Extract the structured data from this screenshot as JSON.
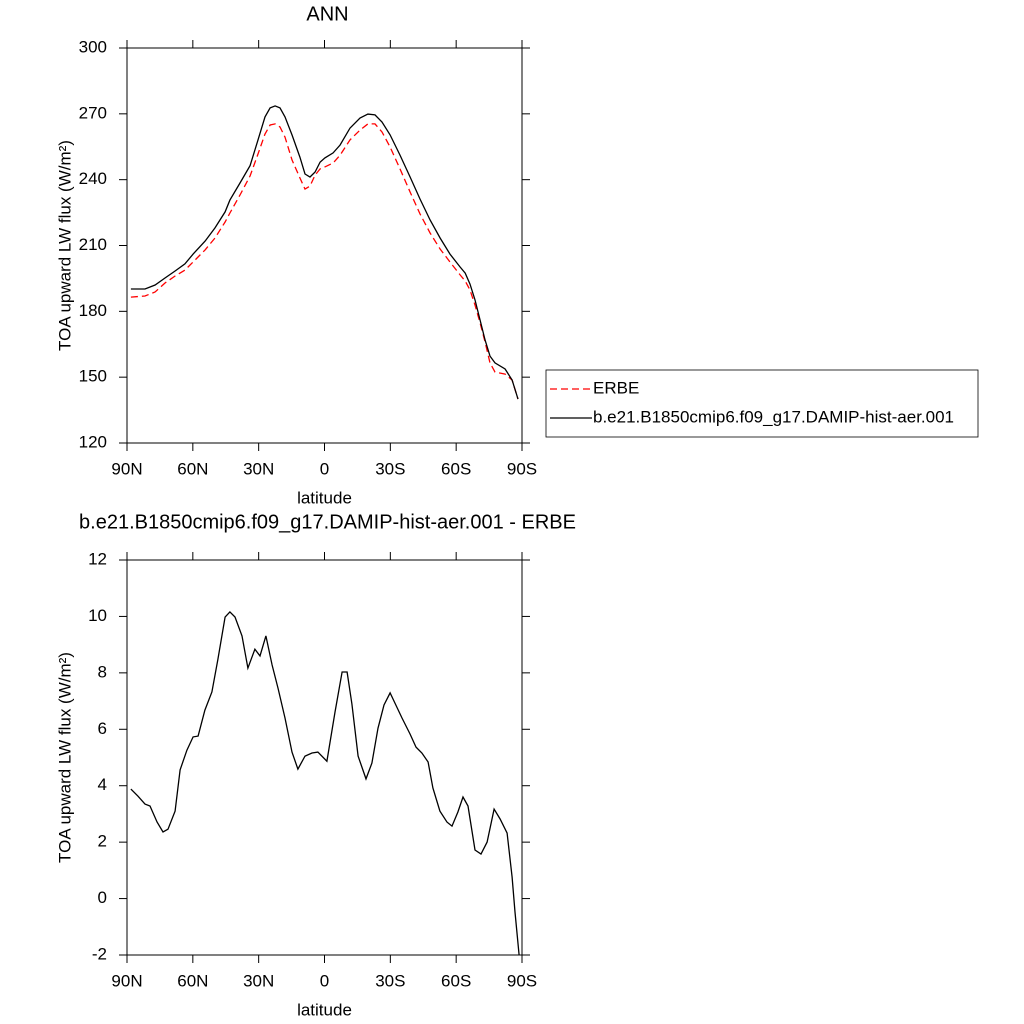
{
  "chart_data": [
    {
      "type": "line",
      "title": "ANN",
      "xlabel": "latitude",
      "ylabel": "TOA upward LW flux (W/m²)",
      "xlim": [
        90,
        -90
      ],
      "xticks": [
        {
          "value": 90,
          "label": "90N"
        },
        {
          "value": 60,
          "label": "60N"
        },
        {
          "value": 30,
          "label": "30N"
        },
        0,
        {
          "value": -30,
          "label": "30S"
        },
        {
          "value": -60,
          "label": "60S"
        },
        {
          "value": -90,
          "label": "90S"
        }
      ],
      "ylim": [
        120,
        300
      ],
      "yticks": [
        120,
        150,
        180,
        210,
        240,
        270,
        300
      ],
      "x": [
        88.2,
        81.8,
        77.2,
        72.7,
        68.1,
        63.6,
        59.9,
        54.4,
        49.9,
        45.3,
        43.1,
        38.5,
        33.9,
        30.3,
        27.1,
        24.8,
        22.5,
        20.3,
        18.0,
        14.8,
        11.2,
        8.9,
        6.6,
        4.3,
        2.0,
        -0.2,
        -3.9,
        -7.1,
        -11.6,
        -16.2,
        -19.8,
        -23.0,
        -26.2,
        -29.9,
        -34.4,
        -39.0,
        -43.5,
        -48.1,
        -52.7,
        -57.2,
        -61.8,
        -64.1,
        -66.3,
        -68.6,
        -70.9,
        -73.2,
        -75.4,
        -77.7,
        -82.3,
        -85.5,
        -88.2
      ],
      "series": [
        {
          "name": "ERBE",
          "color": "#ff0000",
          "dash": true,
          "values": [
            186.5,
            187.0,
            188.8,
            192.9,
            196.1,
            198.8,
            202.5,
            208.0,
            213.4,
            220.7,
            224.8,
            233.0,
            241.7,
            251.7,
            260.8,
            264.9,
            265.4,
            264.0,
            259.4,
            249.0,
            240.8,
            235.7,
            237.1,
            242.1,
            244.9,
            245.8,
            247.6,
            251.2,
            258.1,
            262.6,
            265.4,
            265.4,
            261.7,
            254.9,
            244.9,
            234.4,
            224.4,
            215.7,
            208.4,
            202.5,
            196.6,
            193.8,
            189.7,
            182.9,
            174.7,
            166.0,
            156.5,
            152.3,
            151.4,
            148.7,
            140.0
          ]
        },
        {
          "name": "b.e21.B1850cmip6.f09_g17.DAMIP-hist-aer.001",
          "color": "#000000",
          "dash": false,
          "values": [
            190.2,
            190.2,
            192.0,
            195.2,
            198.4,
            201.6,
            206.1,
            212.0,
            218.0,
            225.3,
            230.7,
            238.5,
            246.4,
            258.1,
            268.6,
            272.7,
            273.6,
            272.7,
            268.6,
            260.4,
            250.3,
            242.6,
            241.2,
            243.5,
            248.0,
            249.9,
            252.2,
            255.8,
            263.5,
            268.1,
            269.9,
            269.5,
            266.3,
            260.4,
            251.2,
            241.2,
            231.2,
            221.6,
            213.4,
            206.1,
            200.2,
            197.4,
            192.4,
            185.2,
            176.0,
            166.9,
            159.6,
            156.5,
            153.7,
            148.7,
            140.0
          ]
        }
      ]
    },
    {
      "type": "line",
      "title": "b.e21.B1850cmip6.f09_g17.DAMIP-hist-aer.001 - ERBE",
      "xlabel": "latitude",
      "ylabel": "TOA upward LW flux (W/m²)",
      "xlim": [
        90,
        -90
      ],
      "xticks": [
        {
          "value": 90,
          "label": "90N"
        },
        {
          "value": 60,
          "label": "60N"
        },
        {
          "value": 30,
          "label": "30N"
        },
        0,
        {
          "value": -30,
          "label": "30S"
        },
        {
          "value": -60,
          "label": "60S"
        },
        {
          "value": -90,
          "label": "90S"
        }
      ],
      "ylim": [
        -2,
        12
      ],
      "yticks": [
        -2,
        0,
        2,
        4,
        6,
        8,
        10,
        12
      ],
      "x": [
        88.2,
        85.0,
        81.8,
        79.5,
        76.3,
        73.6,
        71.3,
        68.1,
        65.8,
        62.7,
        59.9,
        57.6,
        54.5,
        51.3,
        48.6,
        45.3,
        43.1,
        40.8,
        37.6,
        34.9,
        31.7,
        29.4,
        26.7,
        23.9,
        21.2,
        18.0,
        14.8,
        12.1,
        8.9,
        5.7,
        3.0,
        -1.1,
        -4.8,
        -8.0,
        -10.3,
        -12.5,
        -15.3,
        -18.9,
        -21.6,
        -24.4,
        -27.1,
        -29.9,
        -32.1,
        -35.3,
        -39.0,
        -41.7,
        -44.4,
        -47.2,
        -49.4,
        -52.6,
        -55.8,
        -58.1,
        -60.8,
        -63.1,
        -65.4,
        -68.6,
        -71.3,
        -74.1,
        -77.3,
        -80.0,
        -83.2,
        -85.5,
        -86.8,
        -88.7
      ],
      "series": [
        {
          "color": "#000000",
          "dash": false,
          "values": [
            3.88,
            3.63,
            3.35,
            3.28,
            2.71,
            2.36,
            2.46,
            3.1,
            4.56,
            5.26,
            5.73,
            5.76,
            6.68,
            7.32,
            8.46,
            9.98,
            10.16,
            9.98,
            9.31,
            8.17,
            8.84,
            8.6,
            9.31,
            8.28,
            7.46,
            6.4,
            5.19,
            4.59,
            5.05,
            5.16,
            5.19,
            4.87,
            6.61,
            8.03,
            8.03,
            6.9,
            5.05,
            4.24,
            4.8,
            6.04,
            6.86,
            7.29,
            6.93,
            6.4,
            5.83,
            5.37,
            5.16,
            4.84,
            3.92,
            3.1,
            2.71,
            2.57,
            3.07,
            3.6,
            3.28,
            1.72,
            1.58,
            2.0,
            3.17,
            2.82,
            2.32,
            0.76,
            -0.48,
            -2.0
          ]
        }
      ]
    }
  ]
}
